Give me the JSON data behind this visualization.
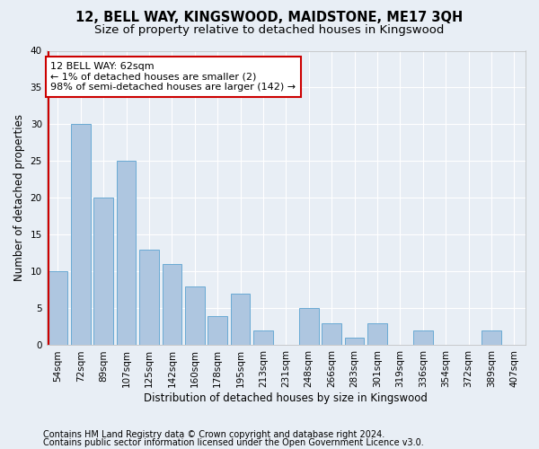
{
  "title": "12, BELL WAY, KINGSWOOD, MAIDSTONE, ME17 3QH",
  "subtitle": "Size of property relative to detached houses in Kingswood",
  "xlabel": "Distribution of detached houses by size in Kingswood",
  "ylabel": "Number of detached properties",
  "categories": [
    "54sqm",
    "72sqm",
    "89sqm",
    "107sqm",
    "125sqm",
    "142sqm",
    "160sqm",
    "178sqm",
    "195sqm",
    "213sqm",
    "231sqm",
    "248sqm",
    "266sqm",
    "283sqm",
    "301sqm",
    "319sqm",
    "336sqm",
    "354sqm",
    "372sqm",
    "389sqm",
    "407sqm"
  ],
  "values": [
    10,
    30,
    20,
    25,
    13,
    11,
    8,
    4,
    7,
    2,
    0,
    5,
    3,
    1,
    3,
    0,
    2,
    0,
    0,
    2,
    0
  ],
  "bar_color": "#aec6e0",
  "bar_edge_color": "#6aaad4",
  "highlight_line_color": "#cc0000",
  "annotation_text": "12 BELL WAY: 62sqm\n← 1% of detached houses are smaller (2)\n98% of semi-detached houses are larger (142) →",
  "annotation_box_color": "#ffffff",
  "annotation_box_edge_color": "#cc0000",
  "ylim": [
    0,
    40
  ],
  "yticks": [
    0,
    5,
    10,
    15,
    20,
    25,
    30,
    35,
    40
  ],
  "footer_line1": "Contains HM Land Registry data © Crown copyright and database right 2024.",
  "footer_line2": "Contains public sector information licensed under the Open Government Licence v3.0.",
  "background_color": "#e8eef5",
  "plot_background_color": "#e8eef5",
  "grid_color": "#ffffff",
  "title_fontsize": 10.5,
  "subtitle_fontsize": 9.5,
  "axis_label_fontsize": 8.5,
  "tick_fontsize": 7.5,
  "annotation_fontsize": 8,
  "footer_fontsize": 7
}
